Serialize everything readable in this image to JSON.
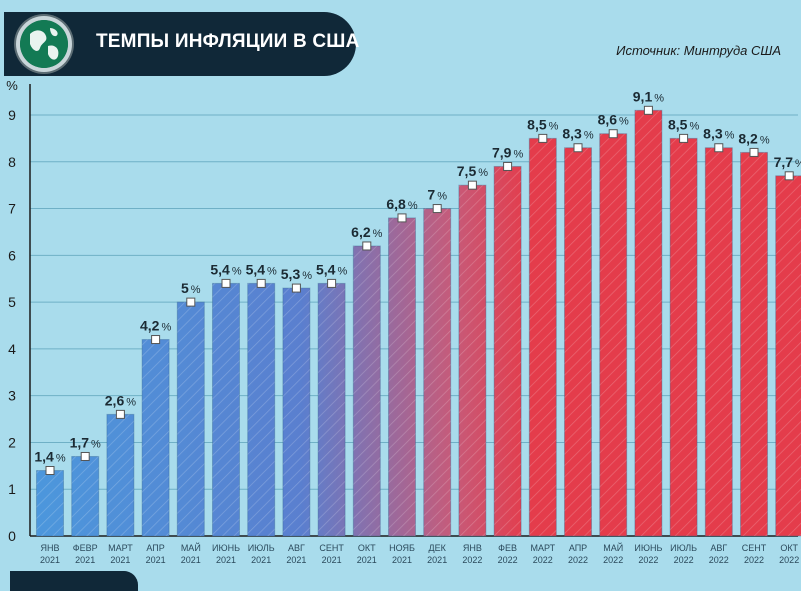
{
  "header": {
    "title": "ТЕМПЫ ИНФЛЯЦИИ В США",
    "source": "Источник: Минтруда США",
    "icon": "globe-icon"
  },
  "colors": {
    "blue": "#3f8fd6",
    "red": "#e53a47",
    "header_bg": "#102838",
    "background": "#a9dcec"
  },
  "chart_data": {
    "type": "bar",
    "title": "ТЕМПЫ ИНФЛЯЦИИ В США",
    "ylabel": "%",
    "ylim": [
      0,
      9.5
    ],
    "yticks": [
      "0",
      "1",
      "2",
      "3",
      "4",
      "5",
      "6",
      "7",
      "8",
      "9"
    ],
    "grid": true,
    "categories": [
      [
        "ЯНВ",
        "2021"
      ],
      [
        "ФЕВР",
        "2021"
      ],
      [
        "МАРТ",
        "2021"
      ],
      [
        "АПР",
        "2021"
      ],
      [
        "МАЙ",
        "2021"
      ],
      [
        "ИЮНЬ",
        "2021"
      ],
      [
        "ИЮЛЬ",
        "2021"
      ],
      [
        "АВГ",
        "2021"
      ],
      [
        "СЕНТ",
        "2021"
      ],
      [
        "ОКТ",
        "2021"
      ],
      [
        "НОЯБ",
        "2021"
      ],
      [
        "ДЕК",
        "2021"
      ],
      [
        "ЯНВ",
        "2022"
      ],
      [
        "ФЕВ",
        "2022"
      ],
      [
        "МАРТ",
        "2022"
      ],
      [
        "АПР",
        "2022"
      ],
      [
        "МАЙ",
        "2022"
      ],
      [
        "ИЮНЬ",
        "2022"
      ],
      [
        "ИЮЛЬ",
        "2022"
      ],
      [
        "АВГ",
        "2022"
      ],
      [
        "СЕНТ",
        "2022"
      ],
      [
        "ОКТ",
        "2022"
      ]
    ],
    "values": [
      1.4,
      1.7,
      2.6,
      4.2,
      5,
      5.4,
      5.4,
      5.3,
      5.4,
      6.2,
      6.8,
      7,
      7.5,
      7.9,
      8.5,
      8.3,
      8.6,
      9.1,
      8.5,
      8.3,
      8.2,
      7.7
    ],
    "labels": [
      "1,4",
      "1,7",
      "2,6",
      "4,2",
      "5",
      "5,4",
      "5,4",
      "5,3",
      "5,4",
      "6,2",
      "6,8",
      "7",
      "7,5",
      "7,9",
      "8,5",
      "8,3",
      "8,6",
      "9,1",
      "8,5",
      "8,3",
      "8,2",
      "7,7"
    ],
    "unit": "%"
  }
}
